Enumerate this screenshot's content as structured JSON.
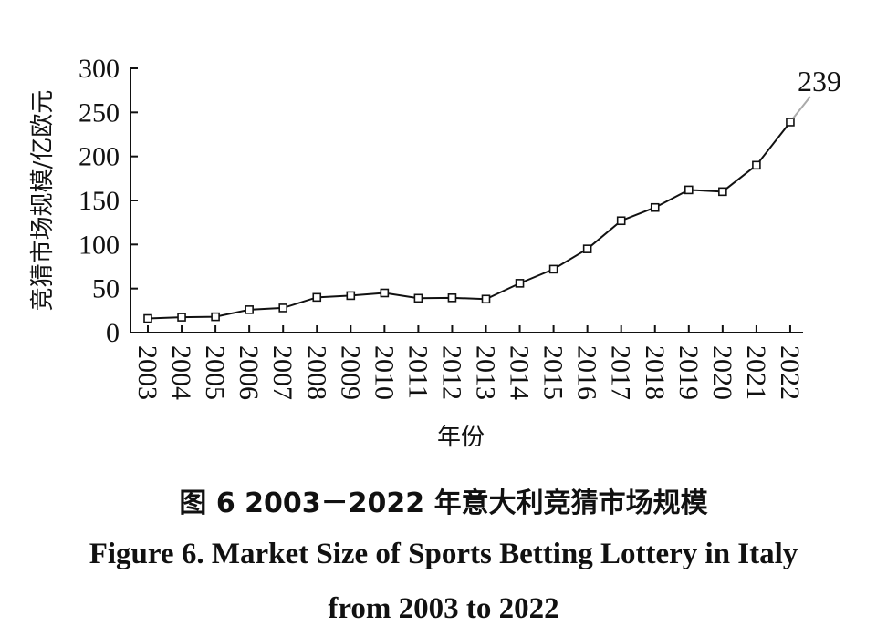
{
  "chart_data": {
    "type": "line",
    "xlabel": "年份",
    "ylabel": "竞猜市场规模/亿欧元",
    "ylim": [
      0,
      300
    ],
    "yticks": [
      "0",
      "50",
      "100",
      "150",
      "200",
      "250",
      "300"
    ],
    "x": [
      "2003",
      "2004",
      "2005",
      "2006",
      "2007",
      "2008",
      "2009",
      "2010",
      "2011",
      "2012",
      "2013",
      "2014",
      "2015",
      "2016",
      "2017",
      "2018",
      "2019",
      "2020",
      "2021",
      "2022"
    ],
    "series": [
      {
        "values": [
          16,
          17.5,
          18,
          26,
          28,
          40,
          42,
          45,
          39,
          39.5,
          38,
          56,
          72,
          95,
          127,
          142,
          162,
          160,
          190,
          239
        ]
      }
    ],
    "annotations": [
      {
        "x": "2022",
        "text": "239"
      }
    ],
    "grid": false,
    "legend": "none",
    "line_color": "#111111",
    "marker": "open-square"
  },
  "caption": {
    "zh": "图 6   2003－2022 年意大利竞猜市场规模",
    "en_line1": "Figure 6.    Market Size of Sports Betting Lottery in Italy",
    "en_line2": "from 2003 to 2022"
  }
}
